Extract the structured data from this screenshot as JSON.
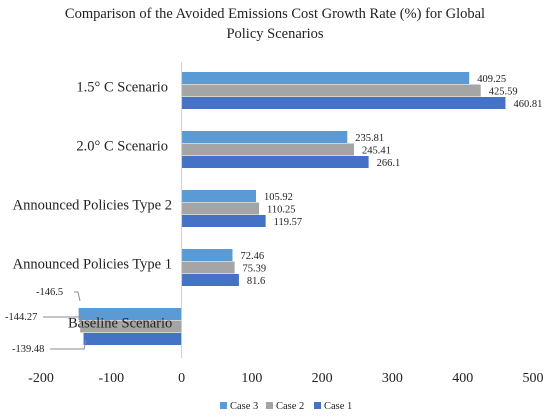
{
  "chart_data": {
    "type": "bar",
    "orientation": "horizontal",
    "title_lines": [
      "Comparison of the Avoided Emissions Cost Growth Rate (%) for Global",
      "Policy Scenarios"
    ],
    "categories": [
      "1.5° C Scenario",
      "2.0° C Scenario",
      "Announced Policies Type 2",
      "Announced Policies Type 1",
      "Baseline Scenario"
    ],
    "series": [
      {
        "name": "Case 3",
        "color": "#5B9BD5",
        "values": [
          409.25,
          235.81,
          105.92,
          72.46,
          -146.5
        ]
      },
      {
        "name": "Case 2",
        "color": "#A5A5A5",
        "values": [
          425.59,
          245.41,
          110.25,
          75.39,
          -144.27
        ]
      },
      {
        "name": "Case 1",
        "color": "#4472C4",
        "values": [
          460.81,
          266.1,
          119.57,
          81.6,
          -139.48
        ]
      }
    ],
    "xlim": [
      -200,
      500
    ],
    "xticks": [
      -200,
      -100,
      0,
      100,
      200,
      300,
      400,
      500
    ],
    "grid": false,
    "legend_position": "bottom"
  }
}
